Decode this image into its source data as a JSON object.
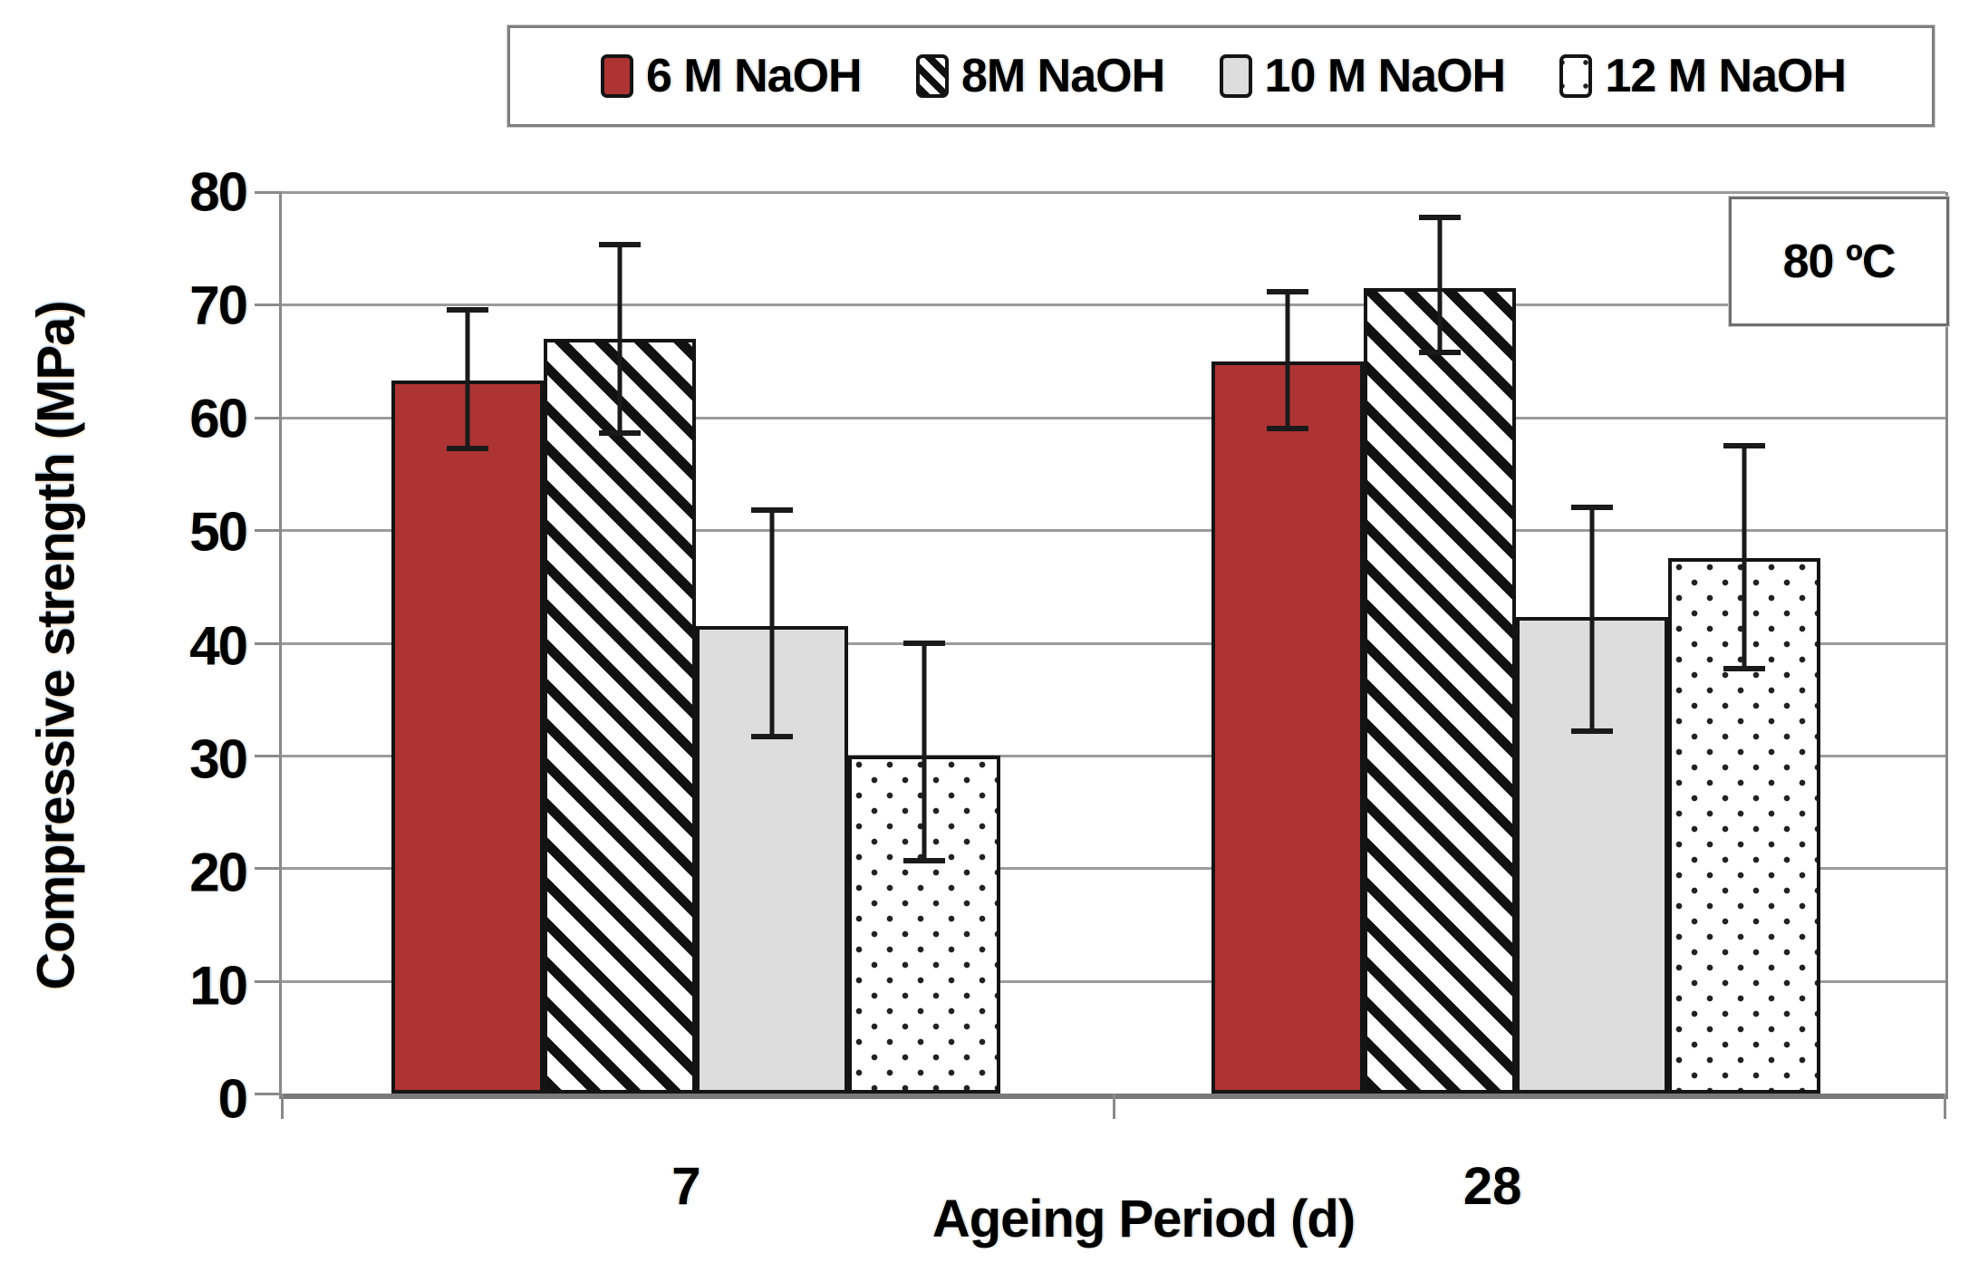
{
  "chart_data": {
    "type": "bar",
    "title": "",
    "xlabel": "Ageing Period (d)",
    "ylabel": "Compressive strength (MPa)",
    "categories": [
      "7",
      "28"
    ],
    "series": [
      {
        "name": "6 M NaOH",
        "pattern": "solid",
        "color": "#AE3433",
        "values": [
          63.3,
          65.0
        ],
        "error_low": [
          57.0,
          58.8
        ],
        "error_high": [
          69.8,
          71.4
        ]
      },
      {
        "name": "8M NaOH",
        "pattern": "hatch",
        "color": "#111111",
        "values": [
          67.0,
          71.5
        ],
        "error_low": [
          58.4,
          65.5
        ],
        "error_high": [
          75.6,
          78.0
        ]
      },
      {
        "name": "10 M NaOH",
        "pattern": "gray",
        "color": "#DDDDDD",
        "values": [
          41.5,
          42.3
        ],
        "error_low": [
          31.4,
          31.9
        ],
        "error_high": [
          52.0,
          52.3
        ]
      },
      {
        "name": "12 M NaOH",
        "pattern": "dots",
        "color": "#222222",
        "values": [
          30.0,
          47.5
        ],
        "error_low": [
          20.4,
          37.5
        ],
        "error_high": [
          40.2,
          57.7
        ]
      }
    ],
    "ylim": [
      0,
      80
    ],
    "yticks": [
      0,
      10,
      20,
      30,
      40,
      50,
      60,
      70,
      80
    ],
    "grid": true,
    "legend_position": "top",
    "annotation": "80 ºC",
    "colors": {
      "bar_border": "#141414",
      "error_bar": "#1a1a1a",
      "gridline": "#9b9b9b",
      "axis": "#7f7f7f",
      "text": "#000000"
    },
    "layout": {
      "group_centers_pct": [
        24.9,
        74.2
      ],
      "bar_width_pct": 9.15,
      "category_label_x_pct": [
        24.4,
        72.7
      ],
      "xtick_positions_pct": [
        0,
        50,
        100
      ]
    }
  }
}
